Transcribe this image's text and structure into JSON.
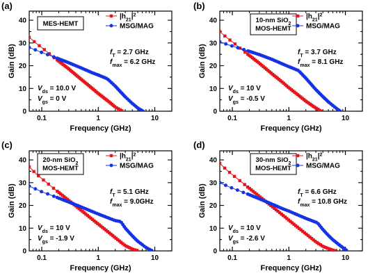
{
  "figure": {
    "title": ""
  },
  "chart_data": [
    {
      "type": "line",
      "panel_label": "(a)",
      "title": "",
      "box_lines": [
        "MES-HEMT"
      ],
      "xlabel": "Frequency (GHz)",
      "ylabel": "Gain (dB)",
      "xscale": "log",
      "xlim": [
        0.06,
        20
      ],
      "ylim": [
        0,
        44
      ],
      "xticks": [
        0.1,
        1,
        10
      ],
      "xtick_labels": [
        "0.1",
        "1",
        "10"
      ],
      "yticks": [
        0,
        10,
        20,
        30,
        40
      ],
      "ytick_labels": [
        "0",
        "10",
        "20",
        "30",
        "40"
      ],
      "legend_placement": "top-right",
      "legend": [
        {
          "prefix": "|h",
          "sub": "21",
          "suffix": "|",
          "sup": "2"
        },
        {
          "text": "MSG/MAG"
        }
      ],
      "annotations": {
        "ft": {
          "sym": "f",
          "sub": "T",
          "value": "2.7 GHz"
        },
        "fmax": {
          "sym": "f",
          "sub": "max",
          "value": "6.2 GHz"
        },
        "vds": {
          "sym": "V",
          "sub": "ds",
          "value": "10.0 V"
        },
        "vgs": {
          "sym": "V",
          "sub": "gs",
          "value": "0 V"
        }
      },
      "series": [
        {
          "name": "|h21|^2",
          "color": "#e8141c",
          "marker": "square",
          "x": [
            0.06,
            0.08,
            0.1,
            0.15,
            0.2,
            0.3,
            0.5,
            0.8,
            1.0,
            1.5,
            2.0,
            2.7
          ],
          "y": [
            32.5,
            29.8,
            28.0,
            24.4,
            22.0,
            18.6,
            14.0,
            9.8,
            7.8,
            4.4,
            1.8,
            0
          ]
        },
        {
          "name": "MSG/MAG",
          "color": "#1432e6",
          "marker": "circle",
          "x": [
            0.06,
            0.08,
            0.1,
            0.15,
            0.2,
            0.3,
            0.5,
            0.8,
            1.0,
            1.4,
            1.5,
            2.0,
            3.0,
            4.0,
            5.0,
            6.2
          ],
          "y": [
            28.0,
            26.8,
            25.8,
            24.2,
            23.0,
            21.3,
            19.0,
            16.8,
            15.9,
            14.4,
            13.9,
            11.0,
            6.3,
            3.4,
            1.4,
            0
          ]
        }
      ]
    },
    {
      "type": "line",
      "panel_label": "(b)",
      "title": "",
      "box_lines": [
        "10-nm SiO",
        "MOS-HEMT"
      ],
      "xlabel": "Frequency (GHz)",
      "ylabel": "Gain (dB)",
      "xscale": "log",
      "xlim": [
        0.06,
        20
      ],
      "ylim": [
        0,
        44
      ],
      "xticks": [
        0.1,
        1,
        10
      ],
      "xtick_labels": [
        "0.1",
        "1",
        "10"
      ],
      "yticks": [
        0,
        10,
        20,
        30,
        40
      ],
      "ytick_labels": [
        "0",
        "10",
        "20",
        "30",
        "40"
      ],
      "legend_placement": "top-right",
      "legend": [
        {
          "prefix": "|h",
          "sub": "21",
          "suffix": "|",
          "sup": "2"
        },
        {
          "text": "MSG/MAG"
        }
      ],
      "annotations": {
        "ft": {
          "sym": "f",
          "sub": "T",
          "value": "3.7 GHz"
        },
        "fmax": {
          "sym": "f",
          "sub": "max",
          "value": "8.1 GHz"
        },
        "vds": {
          "sym": "V",
          "sub": "ds",
          "value": "10 V"
        },
        "vgs": {
          "sym": "V",
          "sub": "gs",
          "value": "-0.5 V"
        }
      },
      "series": [
        {
          "name": "|h21|^2",
          "color": "#e8141c",
          "marker": "square",
          "x": [
            0.06,
            0.08,
            0.1,
            0.15,
            0.2,
            0.3,
            0.5,
            0.8,
            1.0,
            1.5,
            2.0,
            3.0,
            3.7
          ],
          "y": [
            35.0,
            32.3,
            30.5,
            26.9,
            24.5,
            21.1,
            16.5,
            12.4,
            10.3,
            6.9,
            4.4,
            1.4,
            0
          ]
        },
        {
          "name": "MSG/MAG",
          "color": "#1432e6",
          "marker": "circle",
          "x": [
            0.06,
            0.08,
            0.1,
            0.15,
            0.2,
            0.3,
            0.5,
            0.8,
            1.0,
            1.5,
            1.6,
            2.0,
            3.0,
            4.0,
            5.0,
            6.5,
            8.1
          ],
          "y": [
            30.5,
            29.4,
            28.6,
            27.3,
            26.3,
            24.9,
            22.8,
            20.6,
            19.6,
            17.8,
            17.0,
            14.5,
            9.5,
            6.4,
            4.1,
            1.8,
            0
          ]
        }
      ]
    },
    {
      "type": "line",
      "panel_label": "(c)",
      "title": "",
      "box_lines": [
        "20-nm SiO",
        "MOS-HEMT"
      ],
      "xlabel": "Frequency (GHz)",
      "ylabel": "Gain (dB)",
      "xscale": "log",
      "xlim": [
        0.06,
        20
      ],
      "ylim": [
        0,
        44
      ],
      "xticks": [
        0.1,
        1,
        10
      ],
      "xtick_labels": [
        "0.1",
        "1",
        "10"
      ],
      "yticks": [
        0,
        10,
        20,
        30,
        40
      ],
      "ytick_labels": [
        "0",
        "10",
        "20",
        "30",
        "40"
      ],
      "legend_placement": "top-right",
      "legend": [
        {
          "prefix": "|h",
          "sub": "21",
          "suffix": "|",
          "sup": "2"
        },
        {
          "text": "MSG/MAG"
        }
      ],
      "annotations": {
        "ft": {
          "sym": "f",
          "sub": "T",
          "value": "5.1 GHz"
        },
        "fmax": {
          "sym": "f",
          "sub": "max",
          "value": "9.0GHz"
        },
        "vds": {
          "sym": "V",
          "sub": "ds",
          "value": "10 V"
        },
        "vgs": {
          "sym": "V",
          "sub": "gs",
          "value": "-1.9 V"
        }
      },
      "series": [
        {
          "name": "|h21|^2",
          "color": "#e8141c",
          "marker": "square",
          "x": [
            0.06,
            0.08,
            0.1,
            0.15,
            0.2,
            0.3,
            0.5,
            0.8,
            1.0,
            1.5,
            2.0,
            3.0,
            4.0,
            5.1
          ],
          "y": [
            37.0,
            33.8,
            31.8,
            28.2,
            25.7,
            22.2,
            17.8,
            13.7,
            11.8,
            8.3,
            5.8,
            2.3,
            0.8,
            0
          ]
        },
        {
          "name": "MSG/MAG",
          "color": "#1432e6",
          "marker": "circle",
          "x": [
            0.06,
            0.08,
            0.1,
            0.15,
            0.2,
            0.3,
            0.5,
            0.8,
            1.0,
            1.5,
            2.0,
            2.5,
            3.0,
            4.0,
            5.0,
            7.0,
            9.0
          ],
          "y": [
            28.5,
            27.1,
            26.0,
            24.4,
            23.2,
            21.5,
            19.3,
            17.2,
            16.2,
            14.5,
            13.3,
            12.9,
            10.0,
            6.6,
            4.2,
            1.5,
            0
          ]
        }
      ]
    },
    {
      "type": "line",
      "panel_label": "(d)",
      "title": "",
      "box_lines": [
        "30-nm SiO",
        "MOS-HEMT"
      ],
      "xlabel": "Frequency (GHz)",
      "ylabel": "Gain (dB)",
      "xscale": "log",
      "xlim": [
        0.06,
        20
      ],
      "ylim": [
        0,
        44
      ],
      "xticks": [
        0.1,
        1,
        10
      ],
      "xtick_labels": [
        "0.1",
        "1",
        "10"
      ],
      "yticks": [
        0,
        10,
        20,
        30,
        40
      ],
      "ytick_labels": [
        "0",
        "10",
        "20",
        "30",
        "40"
      ],
      "legend_placement": "top-right",
      "legend": [
        {
          "prefix": "|h",
          "sub": "21",
          "suffix": "|",
          "sup": "2"
        },
        {
          "text": "MSG/MAG"
        }
      ],
      "annotations": {
        "ft": {
          "sym": "f",
          "sub": "T",
          "value": "6.6 GHz"
        },
        "fmax": {
          "sym": "f",
          "sub": "max",
          "value": "10.8 GHz"
        },
        "vds": {
          "sym": "V",
          "sub": "ds",
          "value": "10 V"
        },
        "vgs": {
          "sym": "V",
          "sub": "gs",
          "value": "-2.6 V"
        }
      },
      "series": [
        {
          "name": "|h21|^2",
          "color": "#e8141c",
          "marker": "square",
          "x": [
            0.06,
            0.08,
            0.1,
            0.15,
            0.2,
            0.3,
            0.5,
            0.8,
            1.0,
            1.5,
            2.0,
            3.0,
            4.0,
            5.0,
            6.6
          ],
          "y": [
            38.5,
            35.5,
            33.5,
            30.0,
            27.5,
            24.0,
            19.6,
            15.5,
            13.5,
            10.0,
            7.5,
            4.0,
            2.0,
            1.0,
            0
          ]
        },
        {
          "name": "MSG/MAG",
          "color": "#1432e6",
          "marker": "circle",
          "x": [
            0.06,
            0.08,
            0.1,
            0.15,
            0.2,
            0.3,
            0.5,
            0.8,
            1.0,
            1.5,
            2.0,
            3.0,
            3.2,
            4.0,
            5.0,
            6.0,
            8.0,
            10.8
          ],
          "y": [
            30.0,
            28.6,
            27.6,
            25.9,
            24.7,
            22.9,
            20.6,
            18.4,
            17.5,
            15.6,
            14.3,
            12.6,
            12.4,
            9.4,
            6.8,
            4.9,
            2.4,
            0
          ]
        }
      ]
    }
  ]
}
